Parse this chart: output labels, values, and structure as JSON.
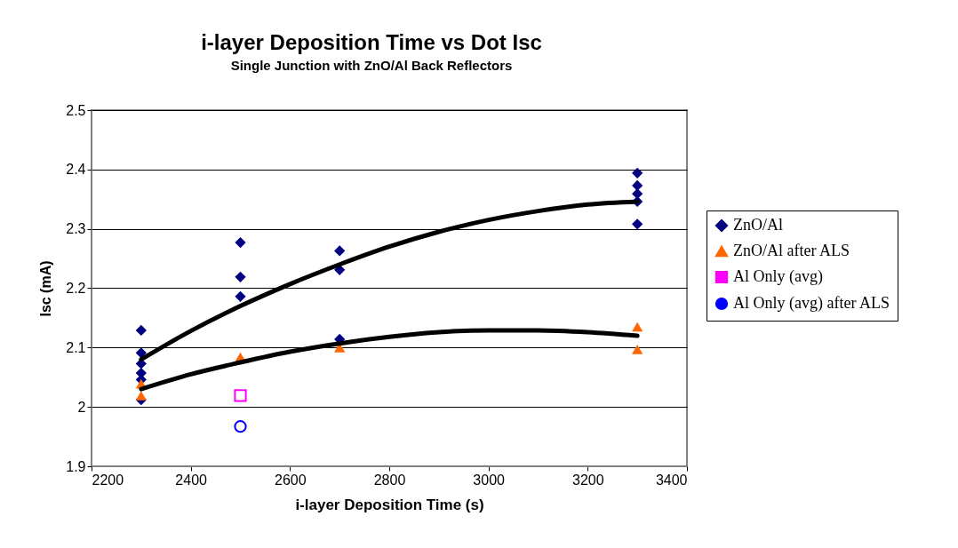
{
  "chart_data": {
    "type": "scatter",
    "title": "i-layer Deposition Time vs Dot Isc",
    "subtitle": "Single Junction with ZnO/Al Back Reflectors",
    "xlabel": "i-layer Deposition Time (s)",
    "ylabel": "Isc (mA)",
    "xlim": [
      2200,
      3400
    ],
    "xticks": [
      2200,
      2400,
      2600,
      2800,
      3000,
      3200,
      3400
    ],
    "ylim": [
      1.9,
      2.5
    ],
    "yticks": [
      1.9,
      2,
      2.1,
      2.2,
      2.3,
      2.4,
      2.5
    ],
    "grid": "y",
    "legend": "right",
    "series": [
      {
        "name": "ZnO/Al",
        "color": "#000080",
        "marker": "diamond",
        "x": [
          2300,
          2300,
          2300,
          2300,
          2300,
          2300,
          2500,
          2500,
          2500,
          2700,
          2700,
          2700,
          3300,
          3300,
          3300,
          3300,
          3300
        ],
        "values": [
          2.129,
          2.091,
          2.073,
          2.057,
          2.046,
          2.012,
          2.277,
          2.219,
          2.186,
          2.263,
          2.231,
          2.114,
          2.394,
          2.373,
          2.359,
          2.346,
          2.308
        ]
      },
      {
        "name": "ZnO/Al  after ALS",
        "color": "#ff6600",
        "marker": "triangle",
        "x": [
          2300,
          2300,
          2500,
          2700,
          3300,
          3300
        ],
        "values": [
          2.039,
          2.019,
          2.084,
          2.1,
          2.135,
          2.097
        ]
      },
      {
        "name": "Al Only (avg)",
        "color": "#ff00ff",
        "marker": "square",
        "x": [
          2500
        ],
        "values": [
          2.019
        ]
      },
      {
        "name": "Al Only (avg) after ALS",
        "color": "#0000ff",
        "marker": "circle",
        "x": [
          2500
        ],
        "values": [
          1.967
        ]
      },
      {
        "type": "line",
        "color": "#000000",
        "marker": "none",
        "x": [
          2300,
          2400,
          2500,
          2600,
          2700,
          2800,
          2900,
          3000,
          3100,
          3200,
          3300
        ],
        "values": [
          2.08,
          2.128,
          2.17,
          2.207,
          2.24,
          2.27,
          2.295,
          2.315,
          2.33,
          2.341,
          2.346
        ]
      },
      {
        "type": "line",
        "color": "#000000",
        "marker": "none",
        "x": [
          2300,
          2400,
          2500,
          2600,
          2700,
          2800,
          2900,
          3000,
          3100,
          3200,
          3300
        ],
        "values": [
          2.03,
          2.055,
          2.075,
          2.093,
          2.107,
          2.118,
          2.126,
          2.129,
          2.129,
          2.126,
          2.12
        ]
      }
    ]
  }
}
